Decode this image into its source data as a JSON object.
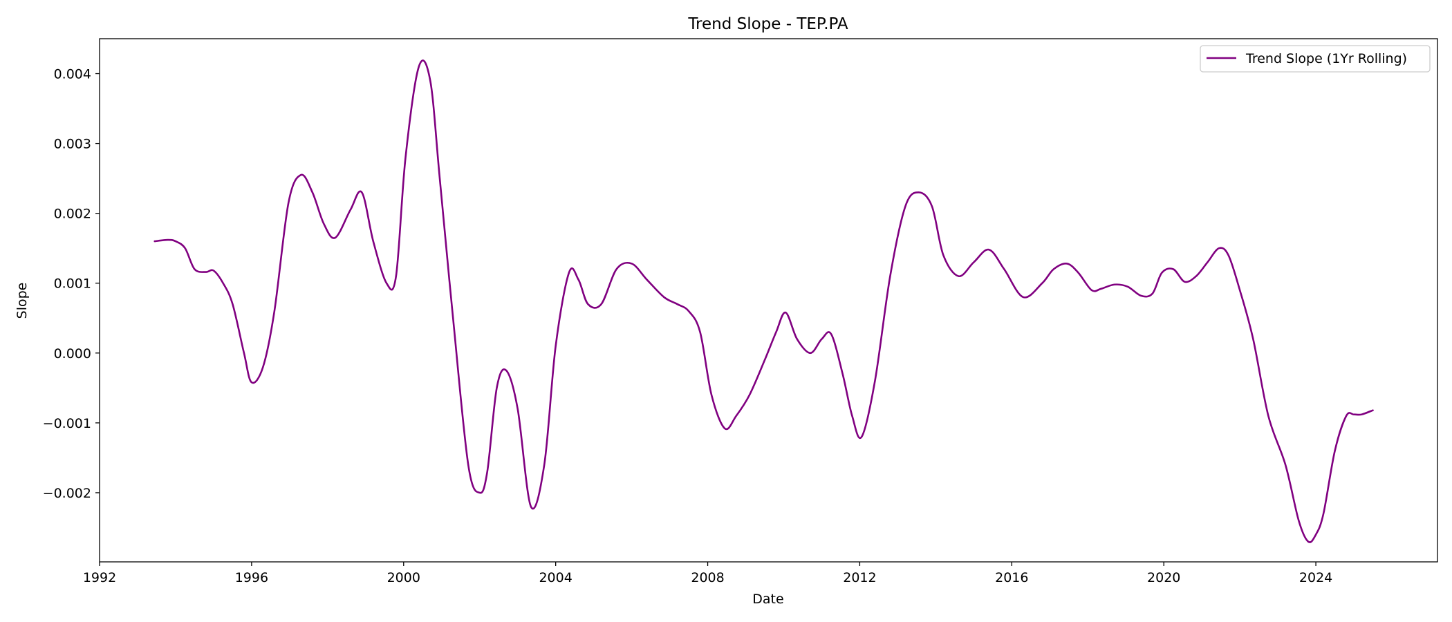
{
  "chart_data": {
    "type": "line",
    "title": "Trend Slope - TEP.PA",
    "xlabel": "Date",
    "ylabel": "Slope",
    "xlim": [
      1992.0,
      2027.2
    ],
    "ylim": [
      -0.00299,
      0.0045
    ],
    "xticks": [
      {
        "value": 1992,
        "label": "1992"
      },
      {
        "value": 1996,
        "label": "1996"
      },
      {
        "value": 2000,
        "label": "2000"
      },
      {
        "value": 2004,
        "label": "2004"
      },
      {
        "value": 2008,
        "label": "2008"
      },
      {
        "value": 2012,
        "label": "2012"
      },
      {
        "value": 2016,
        "label": "2016"
      },
      {
        "value": 2020,
        "label": "2020"
      },
      {
        "value": 2024,
        "label": "2024"
      }
    ],
    "yticks": [
      {
        "value": -0.002,
        "label": "−0.002"
      },
      {
        "value": -0.001,
        "label": "−0.001"
      },
      {
        "value": 0.0,
        "label": "0.000"
      },
      {
        "value": 0.001,
        "label": "0.001"
      },
      {
        "value": 0.002,
        "label": "0.002"
      },
      {
        "value": 0.003,
        "label": "0.003"
      },
      {
        "value": 0.004,
        "label": "0.004"
      }
    ],
    "grid": false,
    "legend": {
      "position": "top-right"
    },
    "series": [
      {
        "name": "Trend Slope (1Yr Rolling)",
        "color": "#800080",
        "x": [
          1993.45,
          1993.8,
          1994.0,
          1994.25,
          1994.5,
          1994.8,
          1995.0,
          1995.25,
          1995.5,
          1995.8,
          1996.0,
          1996.3,
          1996.6,
          1996.97,
          1997.3,
          1997.6,
          1997.9,
          1998.2,
          1998.6,
          1998.9,
          1999.2,
          1999.55,
          1999.8,
          2000.05,
          2000.4,
          2000.7,
          2000.95,
          2001.3,
          2001.7,
          2002.0,
          2002.2,
          2002.45,
          2002.7,
          2003.0,
          2003.35,
          2003.7,
          2004.0,
          2004.35,
          2004.6,
          2004.85,
          2005.2,
          2005.6,
          2006.0,
          2006.4,
          2006.85,
          2007.2,
          2007.5,
          2007.8,
          2008.1,
          2008.45,
          2008.75,
          2009.1,
          2009.5,
          2009.8,
          2010.05,
          2010.35,
          2010.7,
          2011.0,
          2011.25,
          2011.55,
          2011.8,
          2012.05,
          2012.4,
          2012.8,
          2013.2,
          2013.55,
          2013.9,
          2014.2,
          2014.6,
          2015.0,
          2015.4,
          2015.8,
          2016.3,
          2016.8,
          2017.1,
          2017.45,
          2017.75,
          2018.1,
          2018.35,
          2018.7,
          2019.05,
          2019.4,
          2019.7,
          2019.95,
          2020.25,
          2020.55,
          2020.85,
          2021.15,
          2021.45,
          2021.7,
          2022.0,
          2022.35,
          2022.75,
          2023.2,
          2023.55,
          2023.8,
          2024.0,
          2024.2,
          2024.5,
          2024.8,
          2025.0,
          2025.2,
          2025.5
        ],
        "y": [
          0.0016,
          0.00162,
          0.0016,
          0.0015,
          0.0012,
          0.00116,
          0.00118,
          0.001,
          0.0007,
          0.0,
          -0.00042,
          -0.0002,
          0.0006,
          0.00215,
          0.00255,
          0.0023,
          0.00185,
          0.00165,
          0.00205,
          0.0023,
          0.0016,
          0.001,
          0.0011,
          0.0028,
          0.0041,
          0.0039,
          0.0025,
          0.0005,
          -0.0016,
          -0.002,
          -0.0017,
          -0.0005,
          -0.00025,
          -0.0008,
          -0.0022,
          -0.0016,
          0.0001,
          0.00115,
          0.00105,
          0.0007,
          0.0007,
          0.0012,
          0.00128,
          0.00105,
          0.0008,
          0.0007,
          0.0006,
          0.0003,
          -0.0006,
          -0.00108,
          -0.0009,
          -0.0006,
          -0.0001,
          0.0003,
          0.00058,
          0.0002,
          0.0,
          0.0002,
          0.00027,
          -0.0003,
          -0.0009,
          -0.0012,
          -0.0004,
          0.0011,
          0.0021,
          0.0023,
          0.0021,
          0.0014,
          0.0011,
          0.0013,
          0.00148,
          0.0012,
          0.0008,
          0.001,
          0.0012,
          0.00128,
          0.00115,
          0.0009,
          0.00092,
          0.00098,
          0.00095,
          0.00082,
          0.00085,
          0.00115,
          0.0012,
          0.00102,
          0.0011,
          0.0013,
          0.0015,
          0.0014,
          0.0009,
          0.0002,
          -0.0009,
          -0.0016,
          -0.0024,
          -0.0027,
          -0.0026,
          -0.0023,
          -0.0014,
          -0.0009,
          -0.00088,
          -0.00088,
          -0.00082
        ]
      }
    ]
  }
}
